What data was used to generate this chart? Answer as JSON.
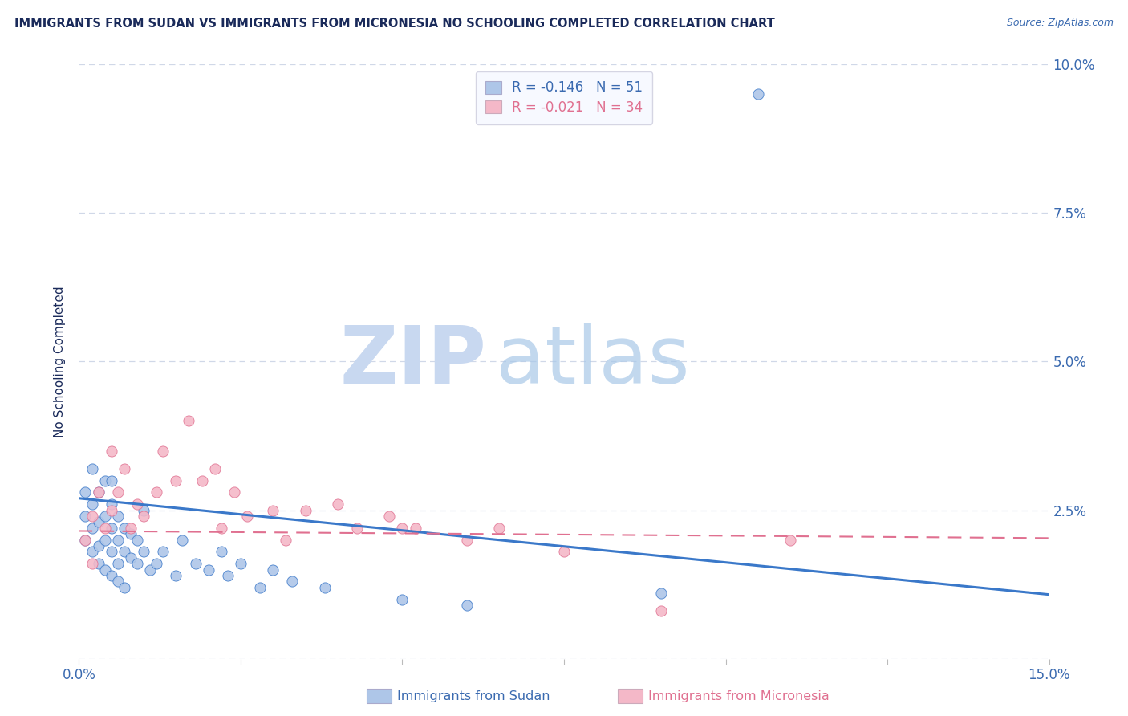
{
  "title": "IMMIGRANTS FROM SUDAN VS IMMIGRANTS FROM MICRONESIA NO SCHOOLING COMPLETED CORRELATION CHART",
  "source_text": "Source: ZipAtlas.com",
  "ylabel": "No Schooling Completed",
  "xlim": [
    0.0,
    0.15
  ],
  "ylim": [
    0.0,
    0.1
  ],
  "yticks": [
    0.0,
    0.025,
    0.05,
    0.075,
    0.1
  ],
  "ytick_labels": [
    "",
    "2.5%",
    "5.0%",
    "7.5%",
    "10.0%"
  ],
  "xticks": [
    0.0,
    0.025,
    0.05,
    0.075,
    0.1,
    0.125,
    0.15
  ],
  "xtick_labels": [
    "0.0%",
    "",
    "",
    "",
    "",
    "",
    "15.0%"
  ],
  "sudan_R": -0.146,
  "sudan_N": 51,
  "micronesia_R": -0.021,
  "micronesia_N": 34,
  "sudan_color": "#aec6e8",
  "micronesia_color": "#f4b8c8",
  "sudan_line_color": "#3a78c9",
  "micronesia_line_color": "#e07090",
  "watermark_zip": "ZIP",
  "watermark_atlas": "atlas",
  "watermark_color_zip": "#c8d8f0",
  "watermark_color_atlas": "#a8c8e8",
  "title_color": "#1a2a5a",
  "axis_color": "#3a6ab0",
  "legend_box_color": "#f5f8ff",
  "background_color": "#ffffff",
  "grid_color": "#d0d8e8",
  "sudan_x": [
    0.001,
    0.001,
    0.001,
    0.002,
    0.002,
    0.002,
    0.002,
    0.003,
    0.003,
    0.003,
    0.003,
    0.004,
    0.004,
    0.004,
    0.004,
    0.005,
    0.005,
    0.005,
    0.005,
    0.005,
    0.006,
    0.006,
    0.006,
    0.006,
    0.007,
    0.007,
    0.007,
    0.008,
    0.008,
    0.009,
    0.009,
    0.01,
    0.01,
    0.011,
    0.012,
    0.013,
    0.015,
    0.016,
    0.018,
    0.02,
    0.022,
    0.023,
    0.025,
    0.028,
    0.03,
    0.033,
    0.038,
    0.05,
    0.06,
    0.09,
    0.105
  ],
  "sudan_y": [
    0.02,
    0.024,
    0.028,
    0.018,
    0.022,
    0.026,
    0.032,
    0.019,
    0.023,
    0.028,
    0.016,
    0.02,
    0.024,
    0.03,
    0.015,
    0.018,
    0.022,
    0.026,
    0.014,
    0.03,
    0.016,
    0.02,
    0.024,
    0.013,
    0.018,
    0.022,
    0.012,
    0.017,
    0.021,
    0.016,
    0.02,
    0.018,
    0.025,
    0.015,
    0.016,
    0.018,
    0.014,
    0.02,
    0.016,
    0.015,
    0.018,
    0.014,
    0.016,
    0.012,
    0.015,
    0.013,
    0.012,
    0.01,
    0.009,
    0.011,
    0.095
  ],
  "micronesia_x": [
    0.001,
    0.002,
    0.002,
    0.003,
    0.004,
    0.005,
    0.005,
    0.006,
    0.007,
    0.008,
    0.009,
    0.01,
    0.012,
    0.013,
    0.015,
    0.017,
    0.019,
    0.021,
    0.022,
    0.024,
    0.026,
    0.03,
    0.032,
    0.035,
    0.04,
    0.043,
    0.048,
    0.05,
    0.052,
    0.06,
    0.065,
    0.075,
    0.09,
    0.11
  ],
  "micronesia_y": [
    0.02,
    0.024,
    0.016,
    0.028,
    0.022,
    0.035,
    0.025,
    0.028,
    0.032,
    0.022,
    0.026,
    0.024,
    0.028,
    0.035,
    0.03,
    0.04,
    0.03,
    0.032,
    0.022,
    0.028,
    0.024,
    0.025,
    0.02,
    0.025,
    0.026,
    0.022,
    0.024,
    0.022,
    0.022,
    0.02,
    0.022,
    0.018,
    0.008,
    0.02
  ]
}
